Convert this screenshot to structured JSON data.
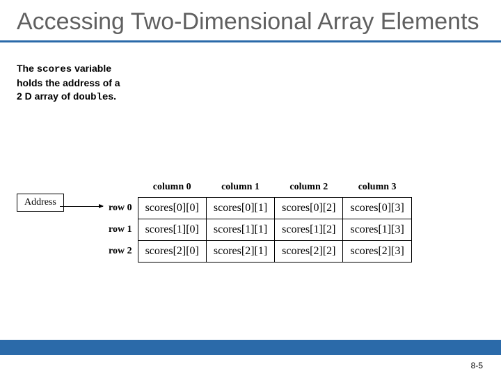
{
  "title": "Accessing Two-Dimensional Array Elements",
  "caption": {
    "line1_pre": "The ",
    "line1_code": "scores",
    "line1_post": " variable",
    "line2": "holds the address of a",
    "line3_pre": "2 D array of ",
    "line3_code": "double",
    "line3_post": "s."
  },
  "address_label": "Address",
  "table": {
    "col_headers": [
      "column 0",
      "column 1",
      "column 2",
      "column 3"
    ],
    "row_headers": [
      "row 0",
      "row 1",
      "row 2"
    ],
    "cells": [
      [
        "scores[0][0]",
        "scores[0][1]",
        "scores[0][2]",
        "scores[0][3]"
      ],
      [
        "scores[1][0]",
        "scores[1][1]",
        "scores[1][2]",
        "scores[1][3]"
      ],
      [
        "scores[2][0]",
        "scores[2][1]",
        "scores[2][2]",
        "scores[2][3]"
      ]
    ]
  },
  "page_number": "8-5",
  "colors": {
    "accent_bar": "#2b6aa9",
    "title_text": "#606060",
    "background": "#ffffff"
  }
}
